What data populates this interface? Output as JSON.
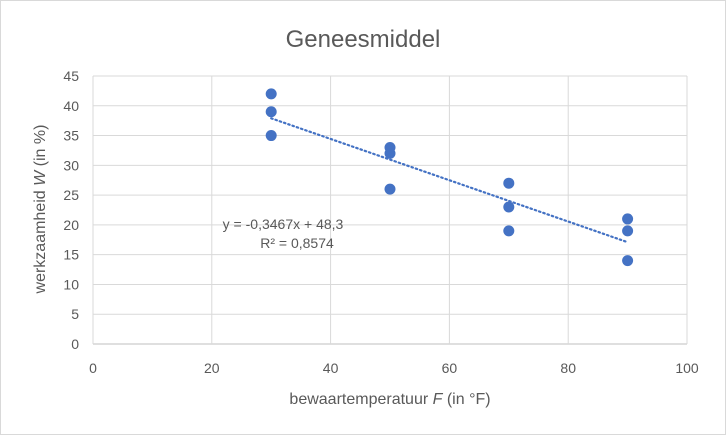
{
  "chart_data": {
    "type": "scatter",
    "title": "Geneesmiddel",
    "xlabel_prefix": "bewaartemperatuur ",
    "xlabel_var": "F",
    "xlabel_suffix": " (in °F)",
    "ylabel_prefix": "werkzaamheid ",
    "ylabel_var": "W",
    "ylabel_suffix": " (in %)",
    "xlim": [
      0,
      100
    ],
    "ylim": [
      0,
      45
    ],
    "x_ticks": [
      "0",
      "20",
      "40",
      "60",
      "80",
      "100"
    ],
    "y_ticks": [
      "0",
      "5",
      "10",
      "15",
      "20",
      "25",
      "30",
      "35",
      "40",
      "45"
    ],
    "grid": true,
    "legend": "none",
    "points": [
      {
        "x": 30,
        "y": 42
      },
      {
        "x": 30,
        "y": 39
      },
      {
        "x": 30,
        "y": 35
      },
      {
        "x": 50,
        "y": 33
      },
      {
        "x": 50,
        "y": 32
      },
      {
        "x": 50,
        "y": 26
      },
      {
        "x": 70,
        "y": 27
      },
      {
        "x": 70,
        "y": 23
      },
      {
        "x": 70,
        "y": 19
      },
      {
        "x": 90,
        "y": 21
      },
      {
        "x": 90,
        "y": 19
      },
      {
        "x": 90,
        "y": 14
      }
    ],
    "trendline": {
      "type": "linear",
      "slope": -0.3467,
      "intercept": 48.3,
      "x_range": [
        30,
        90
      ],
      "equation_label": "y = -0,3467x + 48,3",
      "r2_label": "R² = 0,8574"
    },
    "colors": {
      "marker": "#4472c4",
      "trendline": "#4472c4",
      "grid": "#d9d9d9",
      "axis": "#bfbfbf",
      "text": "#595959"
    }
  }
}
